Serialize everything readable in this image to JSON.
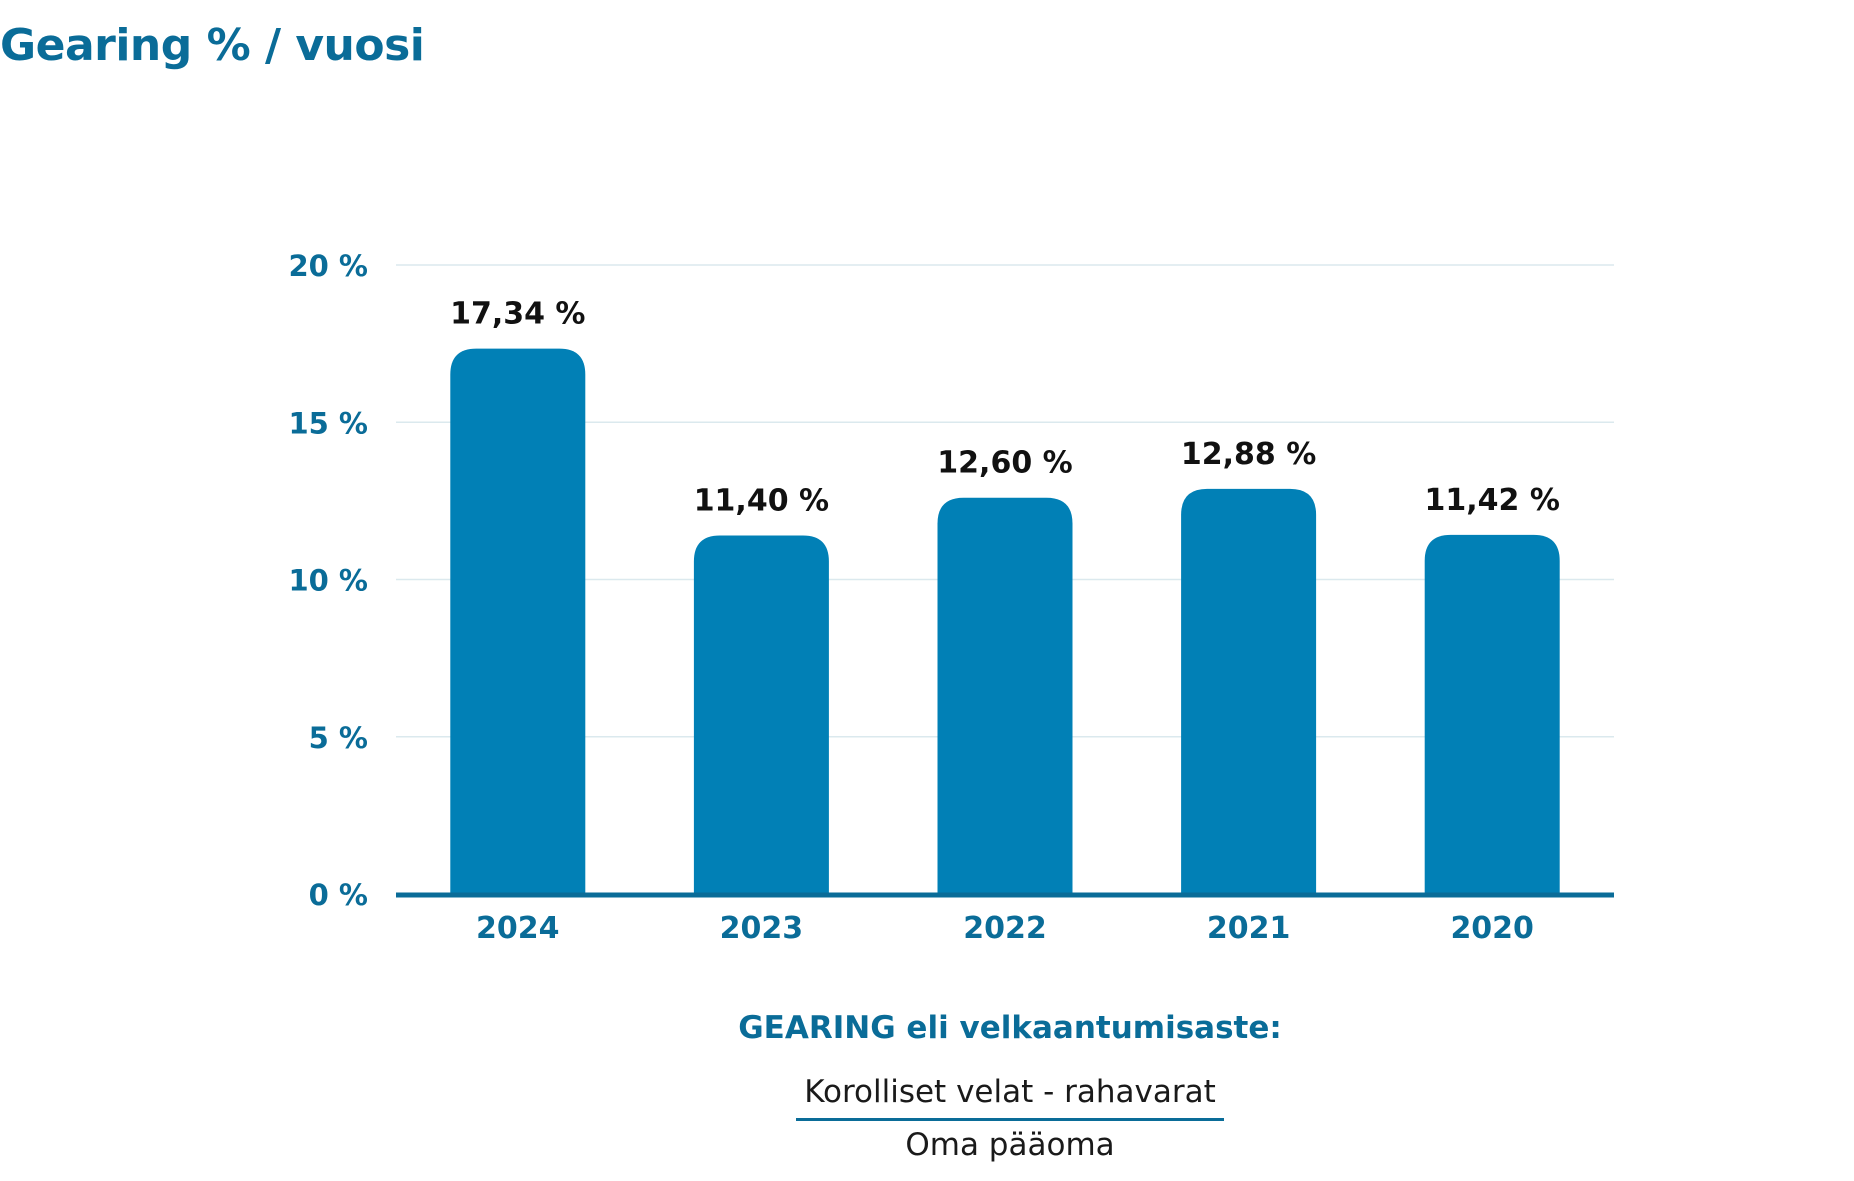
{
  "title": "Gearing % / vuosi",
  "chart_data": {
    "type": "bar",
    "categories": [
      "2024",
      "2023",
      "2022",
      "2021",
      "2020"
    ],
    "values": [
      17.34,
      11.4,
      12.6,
      12.88,
      11.42
    ],
    "data_labels": [
      "17,34 %",
      "11,40 %",
      "12,60 %",
      "12,88 %",
      "11,42 %"
    ],
    "y_ticks": [
      0,
      5,
      10,
      15,
      20
    ],
    "y_tick_labels": [
      "0 %",
      "5 %",
      "10 %",
      "15 %",
      "20 %"
    ],
    "ylim": [
      0,
      20
    ],
    "grid": true,
    "bar_color": "#0180b6",
    "axis_color": "#0a6c98",
    "label_color": "#0a6c98"
  },
  "formula": {
    "title": "GEARING eli velkaantumisaste:",
    "numerator": "Korolliset velat - rahavarat",
    "denominator": "Oma pääoma"
  }
}
